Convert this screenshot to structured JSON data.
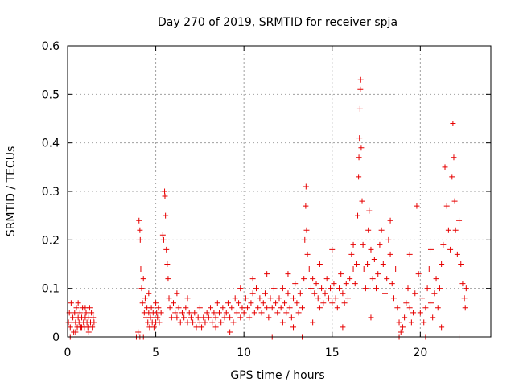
{
  "chart_data": {
    "type": "scatter",
    "title": "Day 270 of 2019, SRMTID for receiver spja",
    "xlabel": "GPS time / hours",
    "ylabel": "SRMTID / TECUs",
    "xlim": [
      0,
      24
    ],
    "ylim": [
      0,
      0.6
    ],
    "xticks": [
      "0",
      "5",
      "10",
      "15",
      "20"
    ],
    "yticks": [
      "0",
      "0.1",
      "0.2",
      "0.3",
      "0.4",
      "0.5",
      "0.6"
    ],
    "grid": true,
    "marker": "plus",
    "color": "#e60000",
    "series": [
      {
        "name": "SRMTID",
        "points": [
          [
            0.05,
            0.03
          ],
          [
            0.1,
            0.05
          ],
          [
            0.15,
            0.02
          ],
          [
            0.2,
            0.07
          ],
          [
            0.25,
            0.03
          ],
          [
            0.3,
            0.04
          ],
          [
            0.35,
            0.01
          ],
          [
            0.4,
            0.05
          ],
          [
            0.45,
            0.03
          ],
          [
            0.5,
            0.06
          ],
          [
            0.55,
            0.02
          ],
          [
            0.6,
            0.04
          ],
          [
            0.65,
            0.03
          ],
          [
            0.7,
            0.05
          ],
          [
            0.75,
            0.02
          ],
          [
            0.8,
            0.04
          ],
          [
            0.85,
            0.06
          ],
          [
            0.9,
            0.03
          ],
          [
            0.95,
            0.02
          ],
          [
            1.0,
            0.04
          ],
          [
            1.05,
            0.05
          ],
          [
            1.1,
            0.03
          ],
          [
            1.15,
            0.02
          ],
          [
            1.2,
            0.04
          ],
          [
            1.25,
            0.06
          ],
          [
            1.3,
            0.03
          ],
          [
            1.35,
            0.05
          ],
          [
            1.4,
            0.02
          ],
          [
            1.45,
            0.04
          ],
          [
            1.5,
            0.03
          ],
          [
            0.15,
            0.0
          ],
          [
            0.45,
            0.01
          ],
          [
            0.8,
            0.02
          ],
          [
            1.2,
            0.01
          ],
          [
            1.0,
            0.06
          ],
          [
            0.6,
            0.07
          ],
          [
            3.9,
            0.0
          ],
          [
            4.0,
            0.01
          ],
          [
            4.05,
            0.24
          ],
          [
            4.1,
            0.22
          ],
          [
            4.12,
            0.2
          ],
          [
            4.15,
            0.14
          ],
          [
            4.2,
            0.1
          ],
          [
            4.25,
            0.07
          ],
          [
            4.3,
            0.12
          ],
          [
            4.35,
            0.05
          ],
          [
            4.4,
            0.08
          ],
          [
            4.45,
            0.04
          ],
          [
            4.5,
            0.06
          ],
          [
            4.55,
            0.03
          ],
          [
            4.6,
            0.05
          ],
          [
            4.65,
            0.02
          ],
          [
            4.7,
            0.04
          ],
          [
            4.75,
            0.06
          ],
          [
            4.8,
            0.03
          ],
          [
            4.85,
            0.05
          ],
          [
            4.9,
            0.02
          ],
          [
            4.95,
            0.04
          ],
          [
            5.0,
            0.03
          ],
          [
            5.05,
            0.05
          ],
          [
            5.1,
            0.04
          ],
          [
            5.15,
            0.06
          ],
          [
            5.2,
            0.03
          ],
          [
            5.3,
            0.05
          ],
          [
            5.4,
            0.21
          ],
          [
            5.45,
            0.2
          ],
          [
            5.5,
            0.3
          ],
          [
            5.52,
            0.29
          ],
          [
            5.55,
            0.25
          ],
          [
            5.6,
            0.18
          ],
          [
            5.65,
            0.15
          ],
          [
            5.7,
            0.12
          ],
          [
            5.75,
            0.08
          ],
          [
            5.8,
            0.06
          ],
          [
            5.9,
            0.04
          ],
          [
            6.0,
            0.07
          ],
          [
            6.1,
            0.05
          ],
          [
            6.2,
            0.04
          ],
          [
            6.3,
            0.06
          ],
          [
            6.4,
            0.03
          ],
          [
            6.5,
            0.05
          ],
          [
            6.6,
            0.04
          ],
          [
            6.7,
            0.06
          ],
          [
            6.8,
            0.03
          ],
          [
            6.9,
            0.05
          ],
          [
            7.0,
            0.04
          ],
          [
            7.1,
            0.03
          ],
          [
            7.2,
            0.05
          ],
          [
            7.3,
            0.02
          ],
          [
            7.4,
            0.04
          ],
          [
            7.5,
            0.03
          ],
          [
            7.6,
            0.02
          ],
          [
            7.7,
            0.04
          ],
          [
            7.8,
            0.03
          ],
          [
            7.9,
            0.05
          ],
          [
            8.0,
            0.04
          ],
          [
            8.1,
            0.06
          ],
          [
            8.2,
            0.03
          ],
          [
            8.3,
            0.05
          ],
          [
            8.4,
            0.04
          ],
          [
            8.5,
            0.07
          ],
          [
            8.6,
            0.05
          ],
          [
            8.7,
            0.03
          ],
          [
            8.8,
            0.06
          ],
          [
            8.9,
            0.04
          ],
          [
            9.0,
            0.05
          ],
          [
            9.1,
            0.07
          ],
          [
            9.2,
            0.04
          ],
          [
            9.3,
            0.06
          ],
          [
            9.4,
            0.03
          ],
          [
            9.5,
            0.08
          ],
          [
            9.6,
            0.05
          ],
          [
            9.7,
            0.07
          ],
          [
            9.8,
            0.04
          ],
          [
            9.9,
            0.06
          ],
          [
            10.0,
            0.05
          ],
          [
            10.1,
            0.08
          ],
          [
            10.2,
            0.06
          ],
          [
            10.3,
            0.04
          ],
          [
            10.4,
            0.07
          ],
          [
            10.5,
            0.09
          ],
          [
            10.6,
            0.05
          ],
          [
            10.7,
            0.1
          ],
          [
            10.8,
            0.06
          ],
          [
            10.9,
            0.08
          ],
          [
            11.0,
            0.05
          ],
          [
            11.1,
            0.07
          ],
          [
            11.2,
            0.09
          ],
          [
            11.3,
            0.06
          ],
          [
            11.4,
            0.04
          ],
          [
            11.5,
            0.08
          ],
          [
            11.6,
            0.06
          ],
          [
            11.7,
            0.1
          ],
          [
            11.8,
            0.07
          ],
          [
            11.9,
            0.05
          ],
          [
            12.0,
            0.08
          ],
          [
            12.1,
            0.06
          ],
          [
            12.2,
            0.1
          ],
          [
            12.3,
            0.07
          ],
          [
            12.4,
            0.05
          ],
          [
            12.5,
            0.09
          ],
          [
            12.6,
            0.06
          ],
          [
            12.7,
            0.04
          ],
          [
            12.8,
            0.08
          ],
          [
            12.9,
            0.11
          ],
          [
            13.0,
            0.07
          ],
          [
            13.1,
            0.05
          ],
          [
            13.2,
            0.09
          ],
          [
            13.3,
            0.06
          ],
          [
            13.4,
            0.12
          ],
          [
            13.45,
            0.2
          ],
          [
            13.5,
            0.27
          ],
          [
            13.52,
            0.31
          ],
          [
            13.55,
            0.22
          ],
          [
            13.6,
            0.17
          ],
          [
            13.7,
            0.14
          ],
          [
            13.8,
            0.1
          ],
          [
            13.9,
            0.12
          ],
          [
            14.0,
            0.09
          ],
          [
            14.1,
            0.11
          ],
          [
            14.2,
            0.08
          ],
          [
            14.3,
            0.06
          ],
          [
            14.4,
            0.1
          ],
          [
            14.5,
            0.07
          ],
          [
            14.6,
            0.09
          ],
          [
            14.7,
            0.12
          ],
          [
            14.8,
            0.08
          ],
          [
            14.9,
            0.1
          ],
          [
            15.0,
            0.07
          ],
          [
            15.1,
            0.11
          ],
          [
            15.2,
            0.08
          ],
          [
            15.3,
            0.06
          ],
          [
            15.4,
            0.1
          ],
          [
            15.5,
            0.13
          ],
          [
            15.6,
            0.09
          ],
          [
            15.7,
            0.07
          ],
          [
            15.8,
            0.11
          ],
          [
            15.9,
            0.08
          ],
          [
            16.0,
            0.12
          ],
          [
            16.1,
            0.17
          ],
          [
            16.2,
            0.14
          ],
          [
            16.3,
            0.11
          ],
          [
            16.4,
            0.15
          ],
          [
            16.45,
            0.25
          ],
          [
            16.5,
            0.33
          ],
          [
            16.52,
            0.37
          ],
          [
            16.55,
            0.41
          ],
          [
            16.58,
            0.47
          ],
          [
            16.6,
            0.51
          ],
          [
            16.62,
            0.53
          ],
          [
            16.65,
            0.39
          ],
          [
            16.7,
            0.28
          ],
          [
            16.75,
            0.19
          ],
          [
            16.8,
            0.14
          ],
          [
            16.9,
            0.1
          ],
          [
            17.0,
            0.15
          ],
          [
            17.05,
            0.22
          ],
          [
            17.1,
            0.26
          ],
          [
            17.2,
            0.18
          ],
          [
            17.3,
            0.12
          ],
          [
            17.4,
            0.16
          ],
          [
            17.5,
            0.1
          ],
          [
            17.6,
            0.13
          ],
          [
            17.7,
            0.19
          ],
          [
            17.8,
            0.22
          ],
          [
            17.9,
            0.15
          ],
          [
            18.0,
            0.09
          ],
          [
            18.1,
            0.12
          ],
          [
            18.2,
            0.2
          ],
          [
            18.3,
            0.17
          ],
          [
            18.4,
            0.11
          ],
          [
            18.5,
            0.08
          ],
          [
            18.6,
            0.14
          ],
          [
            18.7,
            0.06
          ],
          [
            18.8,
            0.03
          ],
          [
            18.9,
            0.01
          ],
          [
            19.0,
            0.02
          ],
          [
            19.1,
            0.04
          ],
          [
            19.2,
            0.07
          ],
          [
            19.3,
            0.1
          ],
          [
            19.4,
            0.06
          ],
          [
            19.5,
            0.03
          ],
          [
            19.6,
            0.05
          ],
          [
            19.7,
            0.09
          ],
          [
            19.8,
            0.27
          ],
          [
            19.9,
            0.13
          ],
          [
            20.0,
            0.05
          ],
          [
            20.1,
            0.08
          ],
          [
            20.2,
            0.03
          ],
          [
            20.3,
            0.06
          ],
          [
            20.4,
            0.1
          ],
          [
            20.5,
            0.14
          ],
          [
            20.6,
            0.07
          ],
          [
            20.7,
            0.04
          ],
          [
            20.8,
            0.09
          ],
          [
            20.9,
            0.12
          ],
          [
            21.0,
            0.06
          ],
          [
            21.1,
            0.1
          ],
          [
            21.2,
            0.15
          ],
          [
            21.3,
            0.19
          ],
          [
            21.4,
            0.35
          ],
          [
            21.5,
            0.27
          ],
          [
            21.6,
            0.22
          ],
          [
            21.7,
            0.18
          ],
          [
            21.8,
            0.33
          ],
          [
            21.85,
            0.44
          ],
          [
            21.9,
            0.37
          ],
          [
            21.95,
            0.28
          ],
          [
            22.0,
            0.22
          ],
          [
            22.1,
            0.17
          ],
          [
            22.2,
            0.24
          ],
          [
            22.3,
            0.15
          ],
          [
            22.4,
            0.11
          ],
          [
            22.5,
            0.08
          ],
          [
            22.55,
            0.06
          ],
          [
            22.6,
            0.1
          ],
          [
            4.6,
            0.09
          ],
          [
            5.0,
            0.07
          ],
          [
            6.2,
            0.09
          ],
          [
            7.5,
            0.06
          ],
          [
            8.4,
            0.02
          ],
          [
            9.2,
            0.01
          ],
          [
            10.5,
            0.12
          ],
          [
            11.3,
            0.13
          ],
          [
            12.2,
            0.03
          ],
          [
            12.8,
            0.02
          ],
          [
            13.9,
            0.03
          ],
          [
            14.3,
            0.15
          ],
          [
            15.0,
            0.18
          ],
          [
            15.6,
            0.02
          ],
          [
            16.2,
            0.19
          ],
          [
            17.2,
            0.04
          ],
          [
            18.3,
            0.24
          ],
          [
            19.4,
            0.17
          ],
          [
            20.6,
            0.18
          ],
          [
            21.2,
            0.02
          ],
          [
            22.2,
            0.0
          ],
          [
            20.3,
            0.0
          ],
          [
            18.8,
            0.0
          ],
          [
            13.3,
            0.0
          ],
          [
            11.6,
            0.0
          ],
          [
            4.1,
            0.0
          ],
          [
            4.3,
            0.0
          ],
          [
            6.8,
            0.08
          ],
          [
            9.8,
            0.1
          ],
          [
            12.5,
            0.13
          ]
        ]
      }
    ]
  }
}
